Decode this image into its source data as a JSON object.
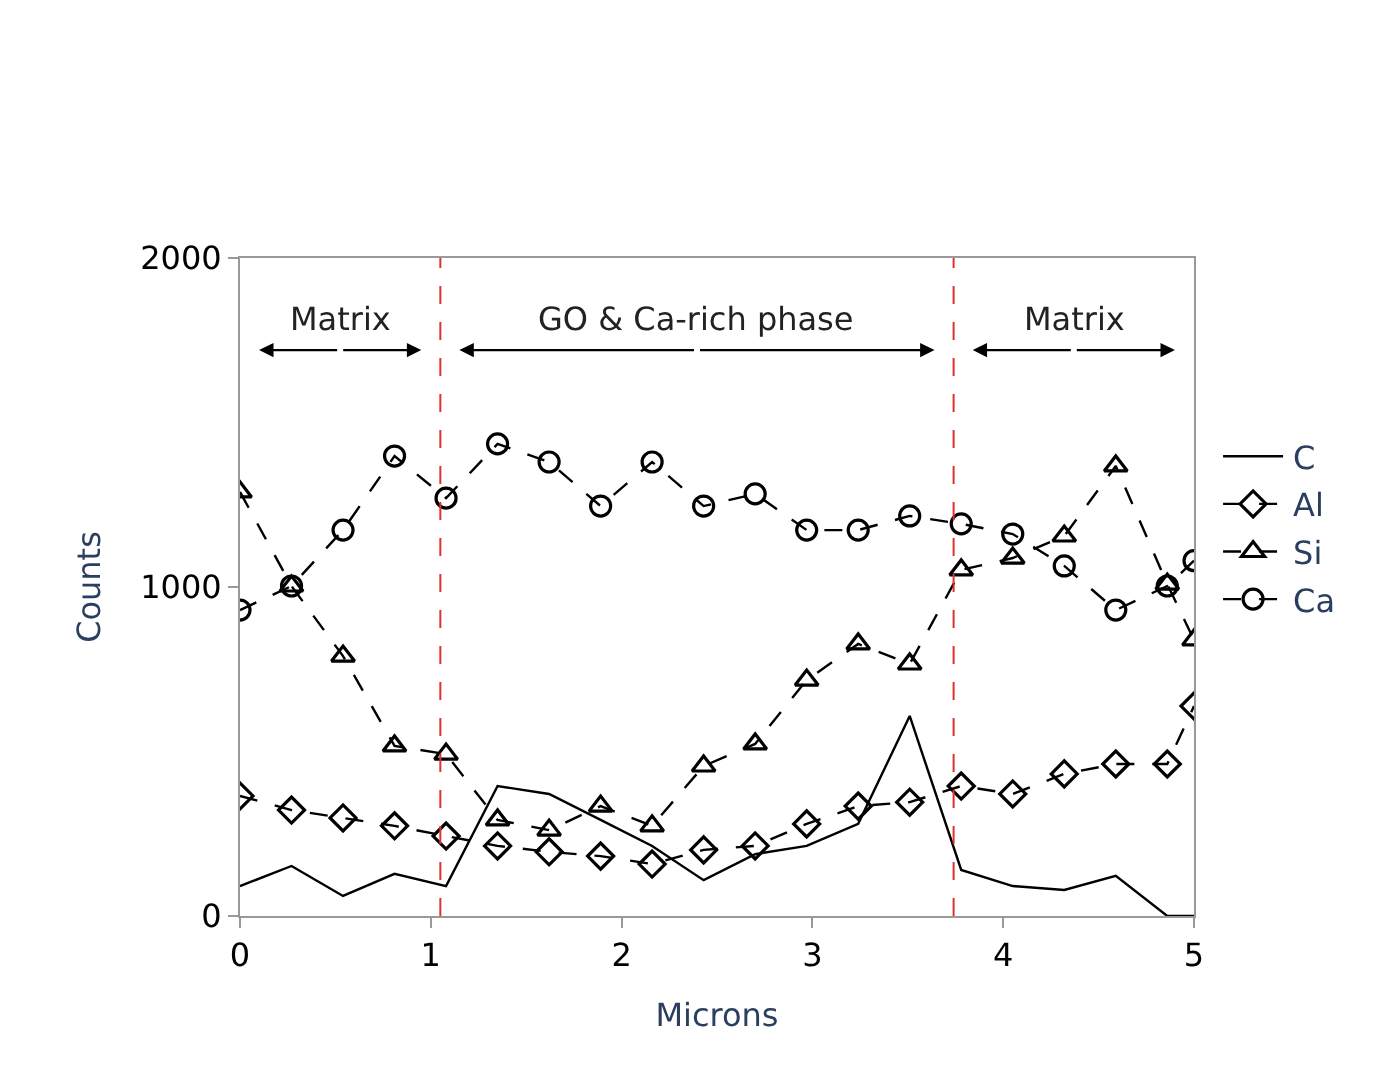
{
  "chart_data": {
    "type": "line",
    "xlabel": "Microns",
    "ylabel": "Counts",
    "x": [
      0,
      0.27,
      0.54,
      0.81,
      1.08,
      1.35,
      1.62,
      1.89,
      2.16,
      2.43,
      2.7,
      2.97,
      3.24,
      3.51,
      3.78,
      4.05,
      4.32,
      4.59,
      4.86,
      5
    ],
    "series": [
      {
        "name": "C",
        "color": "#000000",
        "marker": "none",
        "line_style": "solid",
        "values": [
          91,
          152,
          61,
          128,
          91,
          395,
          371,
          292,
          213,
          109,
          188,
          213,
          280,
          608,
          140,
          91,
          79,
          122,
          0,
          0
        ]
      },
      {
        "name": "Al",
        "color": "#000000",
        "marker": "diamond",
        "line_style": "dashed",
        "values": [
          365,
          322,
          298,
          274,
          243,
          213,
          195,
          182,
          158,
          201,
          213,
          280,
          334,
          346,
          395,
          371,
          432,
          462,
          462,
          638
        ]
      },
      {
        "name": "Si",
        "color": "#000000",
        "marker": "triangle",
        "line_style": "dashed",
        "values": [
          1289,
          1003,
          790,
          517,
          492,
          292,
          261,
          334,
          274,
          456,
          523,
          717,
          827,
          766,
          1052,
          1088,
          1155,
          1368,
          1009,
          839
        ]
      },
      {
        "name": "Ca",
        "color": "#000000",
        "marker": "circle",
        "line_style": "dashed",
        "values": [
          930,
          1003,
          1173,
          1398,
          1270,
          1435,
          1380,
          1246,
          1380,
          1246,
          1283,
          1173,
          1173,
          1216,
          1192,
          1161,
          1064,
          930,
          1003,
          1080
        ]
      }
    ],
    "xlim": [
      0,
      5
    ],
    "xticks": [
      0,
      1,
      2,
      3,
      4,
      5
    ],
    "ylim": [
      0,
      2000
    ],
    "yticks": [
      0,
      1000,
      2000
    ],
    "ref_lines": [
      {
        "axis": "x",
        "value": 1.05,
        "color": "#e03030",
        "line_style": "dashed"
      },
      {
        "axis": "x",
        "value": 3.74,
        "color": "#e03030",
        "line_style": "dashed"
      }
    ],
    "annotations": [
      "Matrix",
      "GO & Ca-rich phase",
      "Matrix"
    ],
    "grid": false,
    "legend": "right"
  }
}
